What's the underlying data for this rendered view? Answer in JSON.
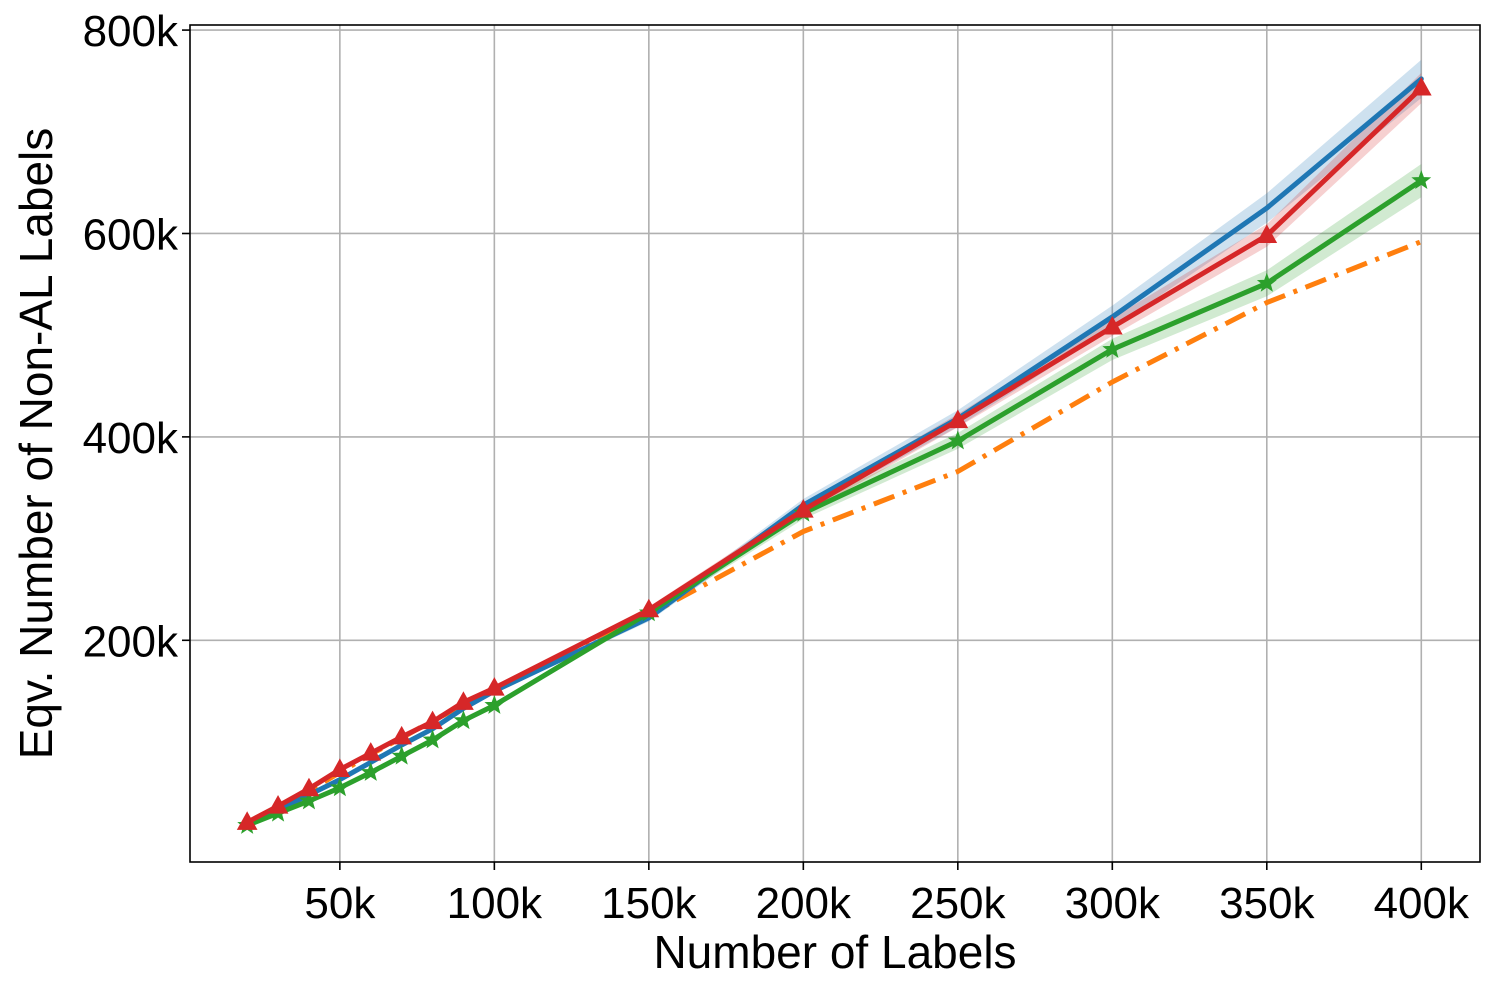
{
  "chart_data": {
    "type": "line",
    "xlabel": "Number of Labels",
    "ylabel": "Eqv. Number of Non-AL Labels",
    "xlim": [
      1500,
      419000
    ],
    "ylim": [
      -18000,
      805000
    ],
    "grid": true,
    "x_ticks": [
      {
        "value": 50000,
        "label": "50k"
      },
      {
        "value": 100000,
        "label": "100k"
      },
      {
        "value": 150000,
        "label": "150k"
      },
      {
        "value": 200000,
        "label": "200k"
      },
      {
        "value": 250000,
        "label": "250k"
      },
      {
        "value": 300000,
        "label": "300k"
      },
      {
        "value": 350000,
        "label": "350k"
      },
      {
        "value": 400000,
        "label": "400k"
      }
    ],
    "y_ticks": [
      {
        "value": 200000,
        "label": "200k"
      },
      {
        "value": 400000,
        "label": "400k"
      },
      {
        "value": 600000,
        "label": "600k"
      },
      {
        "value": 800000,
        "label": "800k"
      }
    ],
    "x": [
      20000,
      30000,
      40000,
      50000,
      60000,
      70000,
      80000,
      90000,
      100000,
      150000,
      200000,
      250000,
      300000,
      350000,
      400000
    ],
    "series": [
      {
        "color": "#ff7f0e",
        "style": "dashdot",
        "marker": "none",
        "band": 0,
        "values": [
          20000,
          30000,
          40000,
          50000,
          60000,
          70000,
          80000,
          90000,
          100000,
          150000,
          200000,
          250000,
          300000,
          350000,
          400000
        ],
        "y": [
          20000,
          34000,
          52000,
          70000,
          88000,
          104000,
          121000,
          136000,
          150000,
          225000,
          307000,
          366000,
          454000,
          532000,
          592000
        ]
      },
      {
        "color": "#1f77b4",
        "style": "solid",
        "marker": "none",
        "band": 0.025,
        "y": [
          20000,
          33000,
          48000,
          63000,
          80000,
          97000,
          113000,
          133000,
          150000,
          222000,
          333000,
          418000,
          518000,
          625000,
          752000
        ]
      },
      {
        "color": "#2ca02c",
        "style": "solid",
        "marker": "star",
        "band": 0.025,
        "y": [
          18000,
          30000,
          42000,
          55000,
          70000,
          86000,
          102000,
          121000,
          136000,
          227000,
          325000,
          396000,
          486000,
          551000,
          652000
        ]
      },
      {
        "color": "#d62728",
        "style": "solid",
        "marker": "triangle",
        "band": 0.02,
        "y": [
          21000,
          37000,
          54000,
          73000,
          89000,
          105000,
          120000,
          139000,
          153000,
          230000,
          328000,
          416000,
          508000,
          598000,
          743000
        ]
      }
    ]
  }
}
